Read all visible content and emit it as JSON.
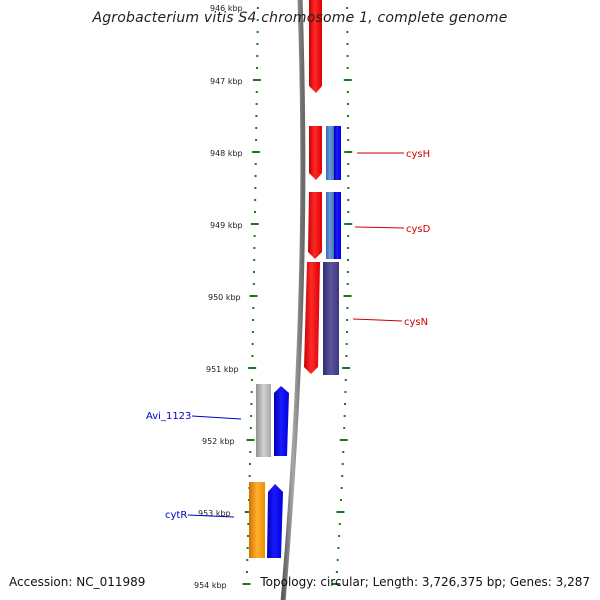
{
  "title": "Agrobacterium vitis S4 chromosome 1, complete genome",
  "footer": {
    "accession": "Accession: NC_011989",
    "summary": "Topology: circular; Length: 3,726,375 bp; Genes: 3,287"
  },
  "ruler": {
    "unit": "kbp",
    "ticks": [
      "946 kbp",
      "947 kbp",
      "948 kbp",
      "949 kbp",
      "950 kbp",
      "951 kbp",
      "952 kbp",
      "953 kbp",
      "954 kbp"
    ]
  },
  "gene_labels": [
    {
      "text": "cysH",
      "color": "#cc0000"
    },
    {
      "text": "cysD",
      "color": "#cc0000"
    },
    {
      "text": "cysN",
      "color": "#cc0000"
    },
    {
      "text": "Avi_1123",
      "color": "#0000cc"
    },
    {
      "text": "cytR",
      "color": "#0000cc"
    }
  ],
  "colors": {
    "backbone": "#7a7a7a",
    "tick_green": "#1a7a1a",
    "forward_red": "#ff0000",
    "reverse_blue": "#0000ff",
    "steelblue": "#4a7fc0",
    "darkblue": "#45408a",
    "gray": "#b4b4b4",
    "orange": "#ff9900"
  }
}
